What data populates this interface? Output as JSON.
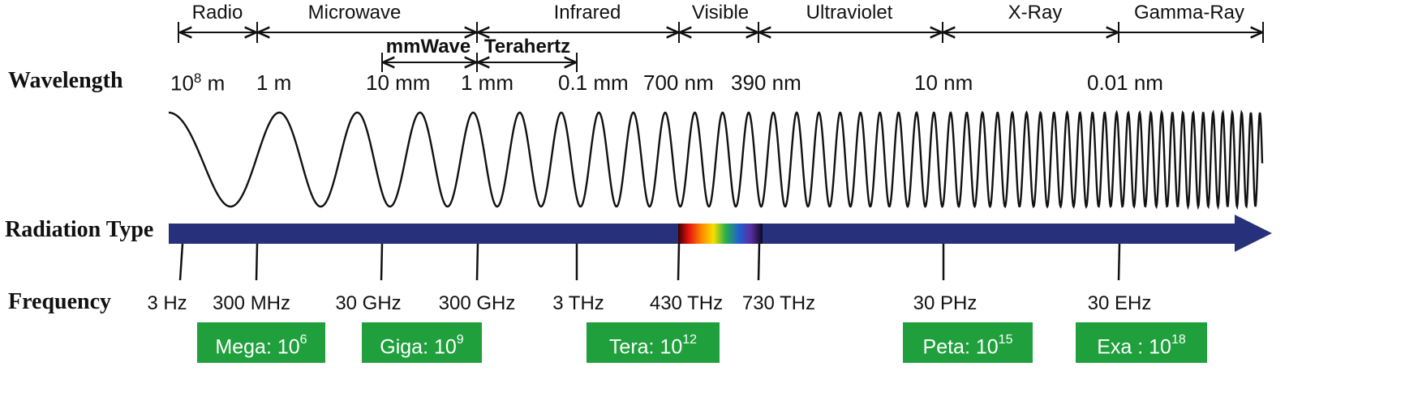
{
  "bands": [
    {
      "label": "Radio"
    },
    {
      "label": "Microwave"
    },
    {
      "label": "Infrared"
    },
    {
      "label": "Visible"
    },
    {
      "label": "Ultraviolet"
    },
    {
      "label": "X-Ray"
    },
    {
      "label": "Gamma-Ray"
    }
  ],
  "sub_bands": [
    {
      "label": "mmWave"
    },
    {
      "label": "Terahertz"
    }
  ],
  "rows": {
    "wavelength": "Wavelength",
    "radiation_type": "Radiation Type",
    "frequency": "Frequency"
  },
  "wavelengths": {
    "w1_base": "10",
    "w1_exp": "8",
    "w1_unit": " m",
    "w2": "1 m",
    "w3": "10 mm",
    "w4": "1 mm",
    "w5": "0.1 mm",
    "w6": "700 nm",
    "w7": "390 nm",
    "w8": "10 nm",
    "w9": "0.01 nm"
  },
  "frequencies": [
    "3 Hz",
    "300 MHz",
    "30 GHz",
    "300 GHz",
    "3 THz",
    "430 THz",
    "730 THz",
    "30 PHz",
    "30 EHz"
  ],
  "prefixes": [
    {
      "name": "Mega: 10",
      "exp": "6"
    },
    {
      "name": "Giga: 10",
      "exp": "9"
    },
    {
      "name": "Tera: 10",
      "exp": "12"
    },
    {
      "name": "Peta: 10",
      "exp": "15"
    },
    {
      "name": "Exa : 10",
      "exp": "18"
    }
  ],
  "colors": {
    "arrow": "#27307a",
    "prefix_box": "#1fa03c",
    "wave": "#111111"
  }
}
